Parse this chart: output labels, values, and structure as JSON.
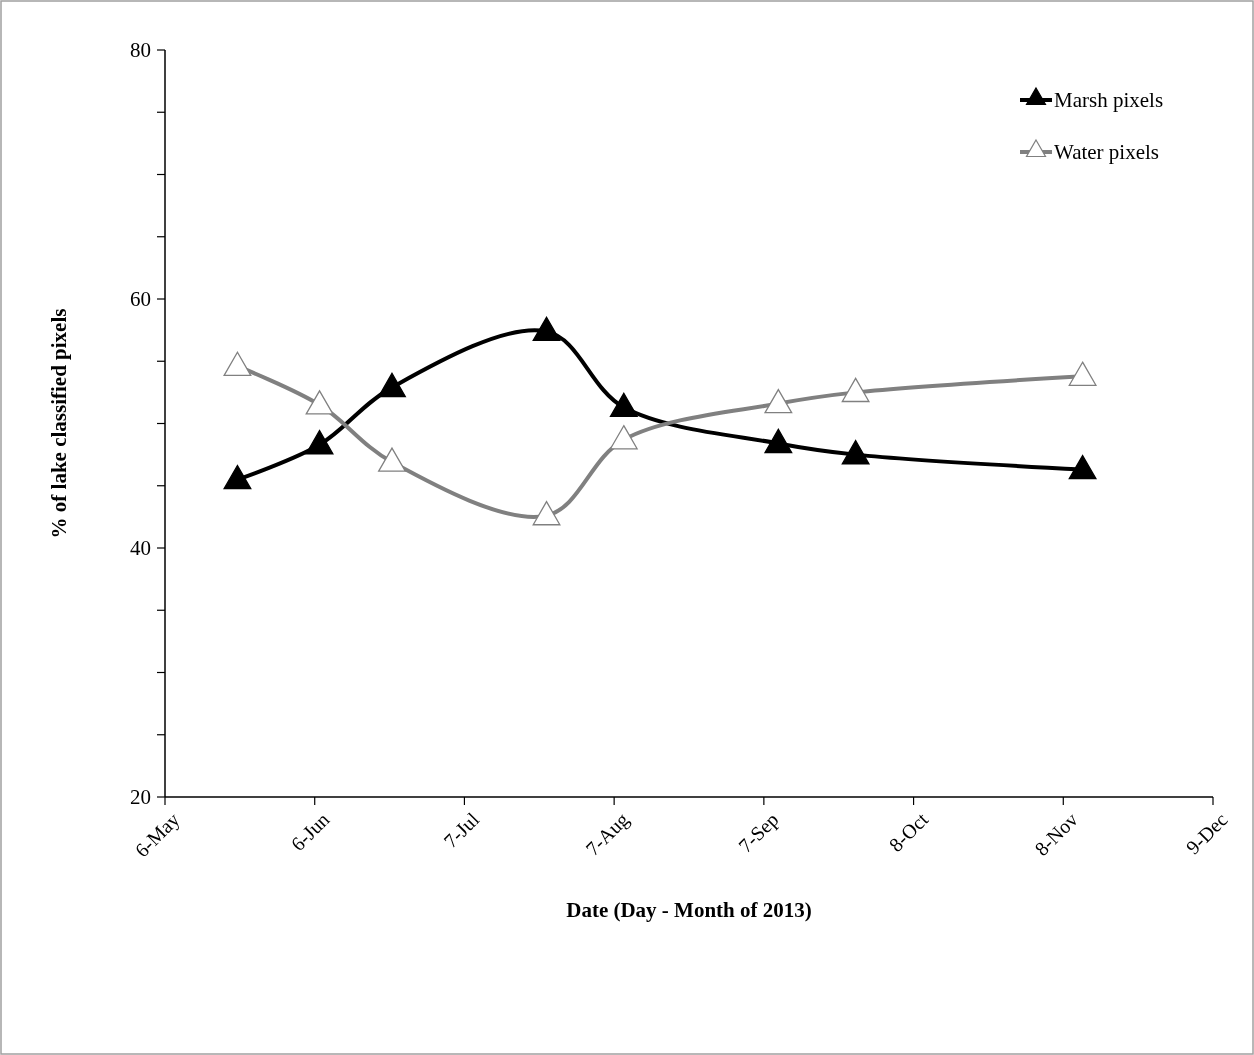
{
  "chart_data": {
    "type": "line",
    "xlabel": "Date (Day - Month of 2013)",
    "ylabel": "% of lake classified pixels",
    "x": [
      "2013-05-21",
      "2013-06-07",
      "2013-06-22",
      "2013-07-24",
      "2013-08-09",
      "2013-09-10",
      "2013-09-26",
      "2013-11-12"
    ],
    "series": [
      {
        "name": "Marsh pixels",
        "color": "#000000",
        "values": [
          45.5,
          48.3,
          52.9,
          57.4,
          51.3,
          48.4,
          47.5,
          46.3
        ]
      },
      {
        "name": "Water pixels",
        "color": "#808080",
        "values": [
          54.6,
          51.5,
          46.9,
          42.6,
          48.7,
          51.6,
          52.5,
          53.8
        ]
      }
    ],
    "xlim": [
      "2013-05-06",
      "2013-12-09"
    ],
    "xticks": [
      {
        "value": "2013-05-06",
        "label": "6-May"
      },
      {
        "value": "2013-06-06",
        "label": "6-Jun"
      },
      {
        "value": "2013-07-07",
        "label": "7-Jul"
      },
      {
        "value": "2013-08-07",
        "label": "7-Aug"
      },
      {
        "value": "2013-09-07",
        "label": "7-Sep"
      },
      {
        "value": "2013-10-08",
        "label": "8-Oct"
      },
      {
        "value": "2013-11-08",
        "label": "8-Nov"
      },
      {
        "value": "2013-12-09",
        "label": "9-Dec"
      }
    ],
    "ylim": [
      20,
      80
    ],
    "yticks": [
      20,
      {
        "value": 25,
        "label": null
      },
      {
        "value": 30,
        "label": null
      },
      {
        "value": 35,
        "label": null
      },
      40,
      {
        "value": 45,
        "label": null
      },
      {
        "value": 50,
        "label": null
      },
      {
        "value": 55,
        "label": null
      },
      60,
      {
        "value": 65,
        "label": null
      },
      {
        "value": 70,
        "label": null
      },
      {
        "value": 75,
        "label": null
      },
      80
    ],
    "grid": false,
    "legend": "top right",
    "marker": "triangle",
    "line_style": "solid"
  }
}
